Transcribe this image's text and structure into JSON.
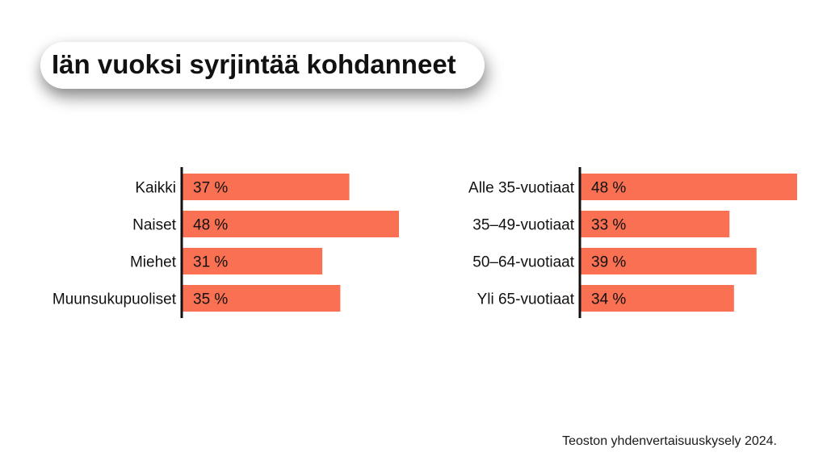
{
  "title": "Iän vuoksi syrjintää kohdanneet",
  "source": "Teoston yhdenvertaisuuskysely 2024.",
  "colors": {
    "bar": "#f97052",
    "axis": "#111111",
    "text": "#111111"
  },
  "chart_data": [
    {
      "type": "bar",
      "orientation": "horizontal",
      "categories": [
        "Kaikki",
        "Naiset",
        "Miehet",
        "Muunsukupuoliset"
      ],
      "values": [
        37,
        48,
        31,
        35
      ],
      "value_labels": [
        "37 %",
        "48 %",
        "31 %",
        "35 %"
      ],
      "xlim": [
        0,
        48
      ]
    },
    {
      "type": "bar",
      "orientation": "horizontal",
      "categories": [
        "Alle 35-vuotiaat",
        "35–49-vuotiaat",
        "50–64-vuotiaat",
        "Yli 65-vuotiaat"
      ],
      "values": [
        48,
        33,
        39,
        34
      ],
      "value_labels": [
        "48 %",
        "33 %",
        "39 %",
        "34 %"
      ],
      "xlim": [
        0,
        48
      ]
    }
  ]
}
